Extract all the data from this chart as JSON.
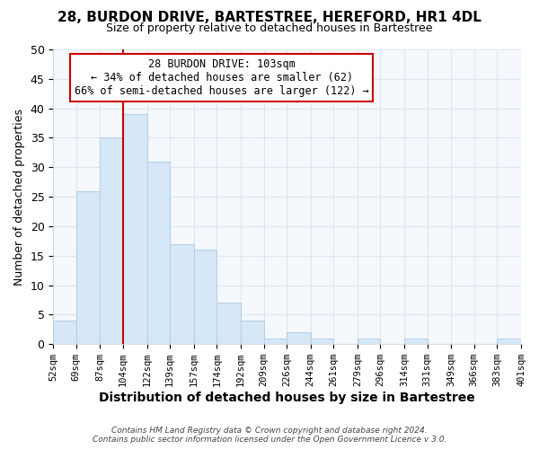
{
  "title1": "28, BURDON DRIVE, BARTESTREE, HEREFORD, HR1 4DL",
  "title2": "Size of property relative to detached houses in Bartestree",
  "xlabel": "Distribution of detached houses by size in Bartestree",
  "ylabel": "Number of detached properties",
  "bin_edges": [
    52,
    69,
    87,
    104,
    122,
    139,
    157,
    174,
    192,
    209,
    226,
    244,
    261,
    279,
    296,
    314,
    331,
    349,
    366,
    383,
    401
  ],
  "bin_labels": [
    "52sqm",
    "69sqm",
    "87sqm",
    "104sqm",
    "122sqm",
    "139sqm",
    "157sqm",
    "174sqm",
    "192sqm",
    "209sqm",
    "226sqm",
    "244sqm",
    "261sqm",
    "279sqm",
    "296sqm",
    "314sqm",
    "331sqm",
    "349sqm",
    "366sqm",
    "383sqm",
    "401sqm"
  ],
  "counts": [
    4,
    26,
    35,
    39,
    31,
    17,
    16,
    7,
    4,
    1,
    2,
    1,
    0,
    1,
    0,
    1,
    0,
    0,
    0,
    1
  ],
  "bar_color": "#d6e8f7",
  "bar_edge_color": "#b8d0e8",
  "vline_x": 104,
  "vline_color": "#cc0000",
  "ylim": [
    0,
    50
  ],
  "yticks": [
    0,
    5,
    10,
    15,
    20,
    25,
    30,
    35,
    40,
    45,
    50
  ],
  "annotation_title": "28 BURDON DRIVE: 103sqm",
  "annotation_line1": "← 34% of detached houses are smaller (62)",
  "annotation_line2": "66% of semi-detached houses are larger (122) →",
  "annotation_box_color": "#ffffff",
  "annotation_box_edge": "#cc0000",
  "footer1": "Contains HM Land Registry data © Crown copyright and database right 2024.",
  "footer2": "Contains public sector information licensed under the Open Government Licence v 3.0.",
  "grid_color": "#dde8f0",
  "background_color": "#ffffff",
  "plot_bg_color": "#f5f8fc"
}
